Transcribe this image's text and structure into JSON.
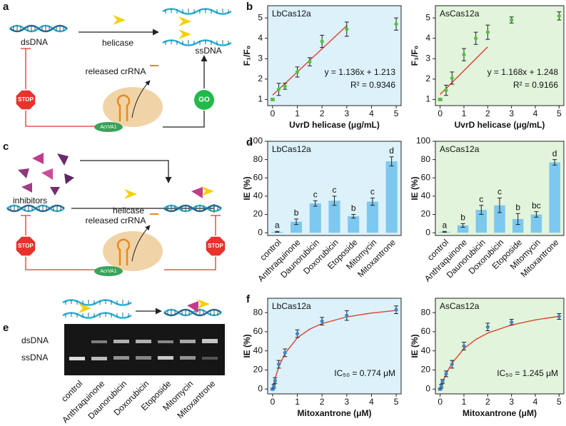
{
  "panels": {
    "a": {
      "label": "a",
      "dsdna": "dsDNA",
      "helicase": "helicase",
      "ssdna": "ssDNA",
      "crrna": "released crRNA",
      "stop": "STOP",
      "go": "GO",
      "acrva1": "AcrVA1"
    },
    "c": {
      "label": "c",
      "inhibitors": "inhibitors",
      "helicase": "helicase",
      "crrna": "released crRNA",
      "stop_left": "STOP",
      "stop_right": "STOP",
      "acrva1": "AcrVA1"
    },
    "e": {
      "label": "e",
      "dsdna": "dsDNA",
      "ssdna": "ssDNA",
      "lanes": [
        "control",
        "Anthraquinone",
        "Daunorubicin",
        "Doxorubicin",
        "Etoposide",
        "Mitomycin",
        "Mitoxantrone"
      ]
    }
  },
  "chart_data": [
    {
      "type": "scatter",
      "panel": "b",
      "title": "LbCas12a",
      "bg": "#dcf1fa",
      "color": "#4fc33a",
      "xlabel": "UvrD helicase (μg/mL)",
      "ylabel": "F₁/F₀",
      "x": [
        0,
        0.25,
        0.5,
        1,
        1.5,
        2,
        3,
        5
      ],
      "values": [
        1.0,
        1.5,
        1.65,
        2.35,
        2.85,
        3.85,
        4.45,
        4.7
      ],
      "errors": [
        0.05,
        0.3,
        0.15,
        0.25,
        0.2,
        0.3,
        0.35,
        0.3
      ],
      "fit": {
        "color": "#e0402f",
        "x": [
          0,
          3
        ],
        "values": [
          1.213,
          4.621
        ]
      },
      "annotations": [
        "y = 1.136x + 1.213",
        "R² = 0.9346"
      ],
      "xlim": [
        -0.2,
        5.2
      ],
      "xticks": [
        0,
        1,
        2,
        3,
        4,
        5
      ],
      "ylim": [
        0.7,
        5.6
      ],
      "yticks": [
        1,
        2,
        3,
        4,
        5
      ]
    },
    {
      "type": "scatter",
      "title": "AsCas12a",
      "bg": "#e2f4dc",
      "color": "#4fc33a",
      "xlabel": "UvrD helicase (μg/mL)",
      "ylabel": "F₁/F₀",
      "x": [
        0,
        0.25,
        0.5,
        1,
        1.5,
        2,
        3,
        5
      ],
      "values": [
        1.0,
        1.45,
        2.05,
        3.2,
        4.0,
        4.3,
        4.9,
        5.1
      ],
      "errors": [
        0.05,
        0.25,
        0.3,
        0.3,
        0.3,
        0.35,
        0.15,
        0.2
      ],
      "fit": {
        "color": "#e0402f",
        "x": [
          0,
          2
        ],
        "values": [
          1.248,
          3.584
        ]
      },
      "annotations": [
        "y = 1.168x + 1.248",
        "R² = 0.9166"
      ],
      "xlim": [
        -0.2,
        5.2
      ],
      "xticks": [
        0,
        1,
        2,
        3,
        4,
        5
      ],
      "ylim": [
        0.7,
        5.6
      ],
      "yticks": [
        1,
        2,
        3,
        4,
        5
      ]
    },
    {
      "type": "bar",
      "panel": "d",
      "title": "LbCas12a",
      "bg": "#dcf1fa",
      "color": "#7cc8ef",
      "ylabel": "IE (%)",
      "categories": [
        "control",
        "Anthraquinone",
        "Daunorubicin",
        "Doxorubicin",
        "Etoposide",
        "Mitomycin",
        "Mitoxantrone"
      ],
      "values": [
        1,
        12,
        32,
        35,
        18,
        34,
        78
      ],
      "errors": [
        0.5,
        3,
        3,
        5,
        2,
        4,
        5
      ],
      "group_letters": [
        "a",
        "b",
        "c",
        "c",
        "b",
        "c",
        "d"
      ],
      "ylim": [
        -3,
        100
      ],
      "yticks": [
        0,
        20,
        40,
        60,
        80,
        100
      ]
    },
    {
      "type": "bar",
      "title": "AsCas12a",
      "bg": "#e2f4dc",
      "color": "#7cc8ef",
      "ylabel": "IE (%)",
      "categories": [
        "control",
        "Anthraquinone",
        "Daunorubicin",
        "Doxorubicin",
        "Etoposide",
        "Mitomycin",
        "Mitoxantrone"
      ],
      "values": [
        1,
        8,
        25,
        30,
        15,
        20,
        77
      ],
      "errors": [
        0.5,
        2,
        5,
        8,
        6,
        3,
        3
      ],
      "group_letters": [
        "a",
        "b",
        "c",
        "c",
        "b",
        "bc",
        "d"
      ],
      "ylim": [
        -3,
        100
      ],
      "yticks": [
        0,
        20,
        40,
        60,
        80,
        100
      ]
    },
    {
      "type": "scatter",
      "panel": "f",
      "title": "LbCas12a",
      "bg": "#dcf1fa",
      "color": "#3f86c8",
      "xlabel": "Mitoxantrone (μM)",
      "ylabel": "IE (%)",
      "x": [
        0,
        0.05,
        0.1,
        0.25,
        0.5,
        1,
        2,
        3,
        5
      ],
      "values": [
        0,
        3,
        9,
        26,
        38,
        58,
        71,
        77,
        83
      ],
      "errors": [
        1,
        2,
        3,
        4,
        4,
        4,
        4,
        5,
        4
      ],
      "fit": {
        "color": "#e0402f",
        "x": [
          0,
          0.1,
          0.25,
          0.5,
          1,
          1.5,
          2,
          3,
          4,
          5
        ],
        "values": [
          0,
          10.9,
          23.2,
          37.3,
          53.6,
          62.7,
          68.5,
          75.5,
          79.6,
          82.3
        ]
      },
      "annotations": [
        "IC₅₀ = 0.774 μM"
      ],
      "xlim": [
        -0.2,
        5.2
      ],
      "xticks": [
        0,
        1,
        2,
        3,
        4,
        5
      ],
      "ylim": [
        -5,
        95
      ],
      "yticks": [
        0,
        20,
        40,
        60,
        80
      ]
    },
    {
      "type": "scatter",
      "title": "AsCas12a",
      "bg": "#e2f4dc",
      "color": "#3f86c8",
      "xlabel": "Mitoxantrone (μM)",
      "ylabel": "IE (%)",
      "x": [
        0,
        0.05,
        0.1,
        0.25,
        0.5,
        1,
        2,
        3,
        5
      ],
      "values": [
        0,
        3,
        8,
        16,
        26,
        45,
        65,
        70,
        76
      ],
      "errors": [
        1,
        2,
        2,
        3,
        4,
        4,
        4,
        3,
        3
      ],
      "fit": {
        "color": "#e0402f",
        "x": [
          0,
          0.1,
          0.25,
          0.5,
          1,
          1.5,
          2,
          3,
          4,
          5
        ],
        "values": [
          0,
          7.1,
          15.9,
          27.2,
          42.3,
          51.9,
          58.6,
          67.1,
          72.4,
          76.1
        ]
      },
      "annotations": [
        "IC₅₀ = 1.245 μM"
      ],
      "xlim": [
        -0.2,
        5.2
      ],
      "xticks": [
        0,
        1,
        2,
        3,
        4,
        5
      ],
      "ylim": [
        -5,
        95
      ],
      "yticks": [
        0,
        20,
        40,
        60,
        80
      ]
    }
  ]
}
